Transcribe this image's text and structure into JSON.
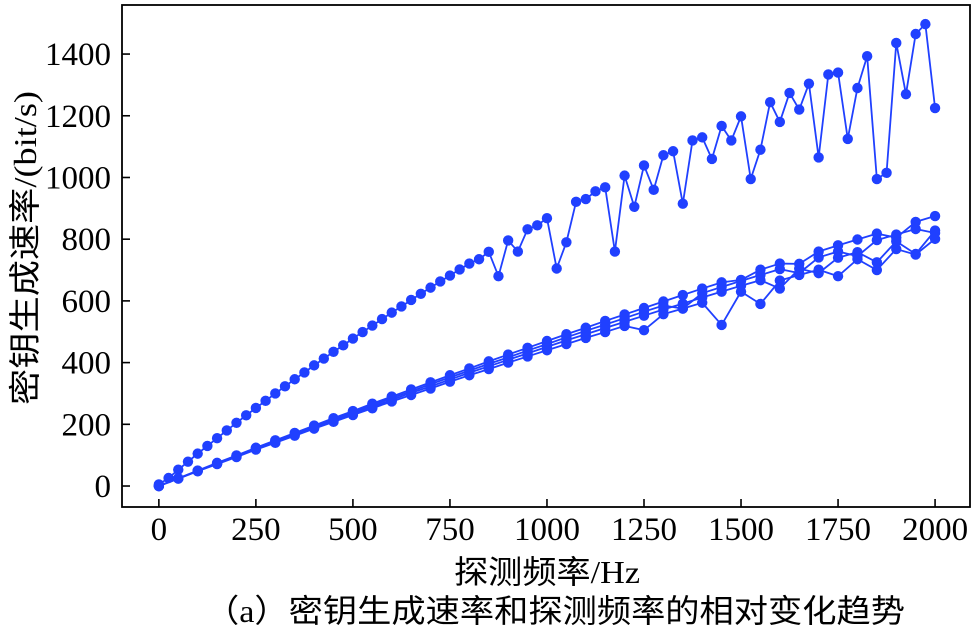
{
  "chart_data": {
    "type": "line",
    "xlabel": "探测频率/Hz",
    "ylabel": "密钥生成速率/(bit/s)",
    "caption": "（a）密钥生成速率和探测频率的相对变化趋势",
    "xlim": [
      -95,
      2090
    ],
    "ylim": [
      -68,
      1559
    ],
    "xticks": [
      0,
      250,
      500,
      750,
      1000,
      1250,
      1500,
      1750,
      2000
    ],
    "xtick_labels": [
      "0",
      "250",
      "500",
      "750",
      "1000",
      "1250",
      "1500",
      "1750",
      "2000"
    ],
    "yticks": [
      0,
      200,
      400,
      600,
      800,
      1000,
      1200,
      1400
    ],
    "ytick_labels": [
      "0",
      "200",
      "400",
      "600",
      "800",
      "1000",
      "1200",
      "1400"
    ],
    "grid": false,
    "color": "#2040ff",
    "series": [
      {
        "x": [
          0,
          25,
          50,
          75,
          100,
          125,
          150,
          175,
          200,
          225,
          250,
          275,
          300,
          325,
          350,
          375,
          400,
          425,
          450,
          475,
          500,
          525,
          550,
          575,
          600,
          625,
          650,
          675,
          700,
          725,
          750,
          775,
          800,
          825,
          850,
          875,
          900,
          925,
          950,
          975,
          1000,
          1025,
          1050,
          1075,
          1100,
          1125,
          1150,
          1175,
          1200,
          1225,
          1250,
          1275,
          1300,
          1325,
          1350,
          1375,
          1400,
          1425,
          1450,
          1475,
          1500,
          1525,
          1550,
          1575,
          1600,
          1625,
          1650,
          1675,
          1700,
          1725,
          1750,
          1775,
          1800,
          1825,
          1850,
          1875,
          1900,
          1925,
          1950,
          1975,
          2000
        ],
        "y": [
          5,
          26,
          53,
          79,
          105,
          130,
          155,
          180,
          205,
          229,
          253,
          276,
          300,
          323,
          346,
          368,
          391,
          413,
          435,
          456,
          478,
          499,
          520,
          541,
          562,
          582,
          603,
          623,
          643,
          663,
          682,
          702,
          721,
          735,
          759,
          680,
          796,
          760,
          832,
          845,
          868,
          705,
          790,
          921,
          930,
          955,
          968,
          760,
          1006,
          905,
          1039,
          960,
          1072,
          1085,
          915,
          1120,
          1130,
          1060,
          1167,
          1120,
          1198,
          995,
          1090,
          1244,
          1180,
          1274,
          1220,
          1304,
          1065,
          1334,
          1340,
          1125,
          1290,
          1393,
          995,
          1015,
          1436,
          1270,
          1465,
          1497,
          1225
        ]
      },
      {
        "x": [
          0,
          50,
          100,
          150,
          200,
          250,
          300,
          350,
          400,
          450,
          500,
          550,
          600,
          650,
          700,
          750,
          800,
          850,
          900,
          950,
          1000,
          1050,
          1100,
          1150,
          1200,
          1250,
          1300,
          1350,
          1400,
          1450,
          1500,
          1550,
          1600,
          1650,
          1700,
          1750,
          1800,
          1850,
          1900,
          1950,
          2000
        ],
        "y": [
          0,
          25,
          50,
          75,
          99,
          124,
          148,
          172,
          196,
          220,
          243,
          267,
          290,
          313,
          336,
          359,
          381,
          404,
          426,
          448,
          470,
          492,
          513,
          535,
          556,
          577,
          598,
          619,
          640,
          660,
          668,
          701,
          721,
          720,
          760,
          780,
          799,
          818,
          805,
          856,
          875
        ]
      },
      {
        "x": [
          0,
          50,
          100,
          150,
          200,
          250,
          300,
          350,
          400,
          450,
          500,
          550,
          600,
          650,
          700,
          750,
          800,
          850,
          900,
          950,
          1000,
          1050,
          1100,
          1150,
          1200,
          1250,
          1300,
          1350,
          1400,
          1450,
          1500,
          1550,
          1600,
          1650,
          1700,
          1750,
          1800,
          1850,
          1900,
          1950,
          2000
        ],
        "y": [
          0,
          25,
          49,
          73,
          98,
          122,
          145,
          169,
          192,
          216,
          239,
          262,
          285,
          307,
          330,
          352,
          374,
          396,
          417,
          439,
          460,
          482,
          503,
          523,
          544,
          565,
          585,
          575,
          625,
          645,
          665,
          684,
          703,
          690,
          741,
          760,
          745,
          797,
          815,
          833,
          820
        ]
      },
      {
        "x": [
          0,
          50,
          100,
          150,
          200,
          250,
          300,
          350,
          400,
          450,
          500,
          550,
          600,
          650,
          700,
          750,
          800,
          850,
          900,
          950,
          1000,
          1050,
          1100,
          1150,
          1200,
          1250,
          1300,
          1350,
          1400,
          1450,
          1500,
          1550,
          1600,
          1650,
          1700,
          1750,
          1800,
          1850,
          1900,
          1950,
          2000
        ],
        "y": [
          0,
          24,
          48,
          72,
          96,
          120,
          143,
          166,
          189,
          212,
          235,
          257,
          279,
          302,
          323,
          345,
          367,
          388,
          409,
          430,
          451,
          472,
          492,
          512,
          532,
          552,
          572,
          591,
          611,
          630,
          649,
          667,
          640,
          704,
          690,
          740,
          758,
          725,
          793,
          752,
          828
        ]
      },
      {
        "x": [
          0,
          50,
          100,
          150,
          200,
          250,
          300,
          350,
          400,
          450,
          500,
          550,
          600,
          650,
          700,
          750,
          800,
          850,
          900,
          950,
          1000,
          1050,
          1100,
          1150,
          1200,
          1250,
          1300,
          1350,
          1400,
          1450,
          1500,
          1550,
          1600,
          1650,
          1700,
          1750,
          1800,
          1850,
          1900,
          1950,
          2000
        ],
        "y": [
          0,
          24,
          48,
          71,
          94,
          118,
          140,
          163,
          186,
          208,
          230,
          252,
          274,
          295,
          316,
          338,
          359,
          379,
          400,
          420,
          440,
          460,
          480,
          499,
          519,
          505,
          557,
          575,
          594,
          522,
          630,
          590,
          666,
          684,
          701,
          680,
          735,
          700,
          768,
          750,
          801
        ]
      }
    ]
  }
}
